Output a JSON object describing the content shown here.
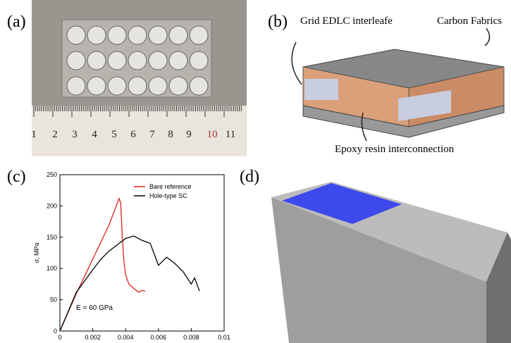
{
  "panels": {
    "a": {
      "label": "(a)",
      "ruler": [
        "1",
        "2",
        "3",
        "4",
        "5",
        "6",
        "7",
        "8",
        "9",
        "10",
        "11"
      ]
    },
    "b": {
      "label": "(b)",
      "annotations": [
        "Grid EDLC interleafe",
        "Carbon Fabrics",
        "Epoxy resin interconnection"
      ]
    },
    "c": {
      "label": "(c)"
    },
    "d": {
      "label": "(d)"
    }
  },
  "chart_data": {
    "type": "line",
    "ylabel": "σ, MPa",
    "xlim": [
      0,
      0.01
    ],
    "xticks": [
      0,
      0.002,
      0.004,
      0.006,
      0.008,
      0.01
    ],
    "ylim": [
      0,
      250
    ],
    "yticks": [
      0,
      50,
      100,
      150,
      200,
      250
    ],
    "annotation": "E = 60 GPa",
    "legend": "upper right",
    "series": [
      {
        "name": "Bare reference",
        "color": "#e02020",
        "x": [
          0,
          0.001,
          0.002,
          0.003,
          0.0035,
          0.0036,
          0.0037,
          0.0038,
          0.0039,
          0.004,
          0.0042,
          0.0045,
          0.0048,
          0.005,
          0.0052
        ],
        "values": [
          0,
          60,
          115,
          170,
          205,
          212,
          205,
          150,
          110,
          90,
          75,
          68,
          62,
          65,
          64
        ]
      },
      {
        "name": "Hole-type SC",
        "color": "#000000",
        "x": [
          0,
          0.001,
          0.0015,
          0.002,
          0.0025,
          0.003,
          0.0035,
          0.004,
          0.0045,
          0.005,
          0.0055,
          0.006,
          0.0065,
          0.007,
          0.0075,
          0.008,
          0.0082,
          0.0085
        ],
        "values": [
          0,
          62,
          80,
          98,
          115,
          128,
          138,
          148,
          152,
          145,
          140,
          105,
          118,
          108,
          95,
          75,
          85,
          64
        ]
      }
    ]
  }
}
